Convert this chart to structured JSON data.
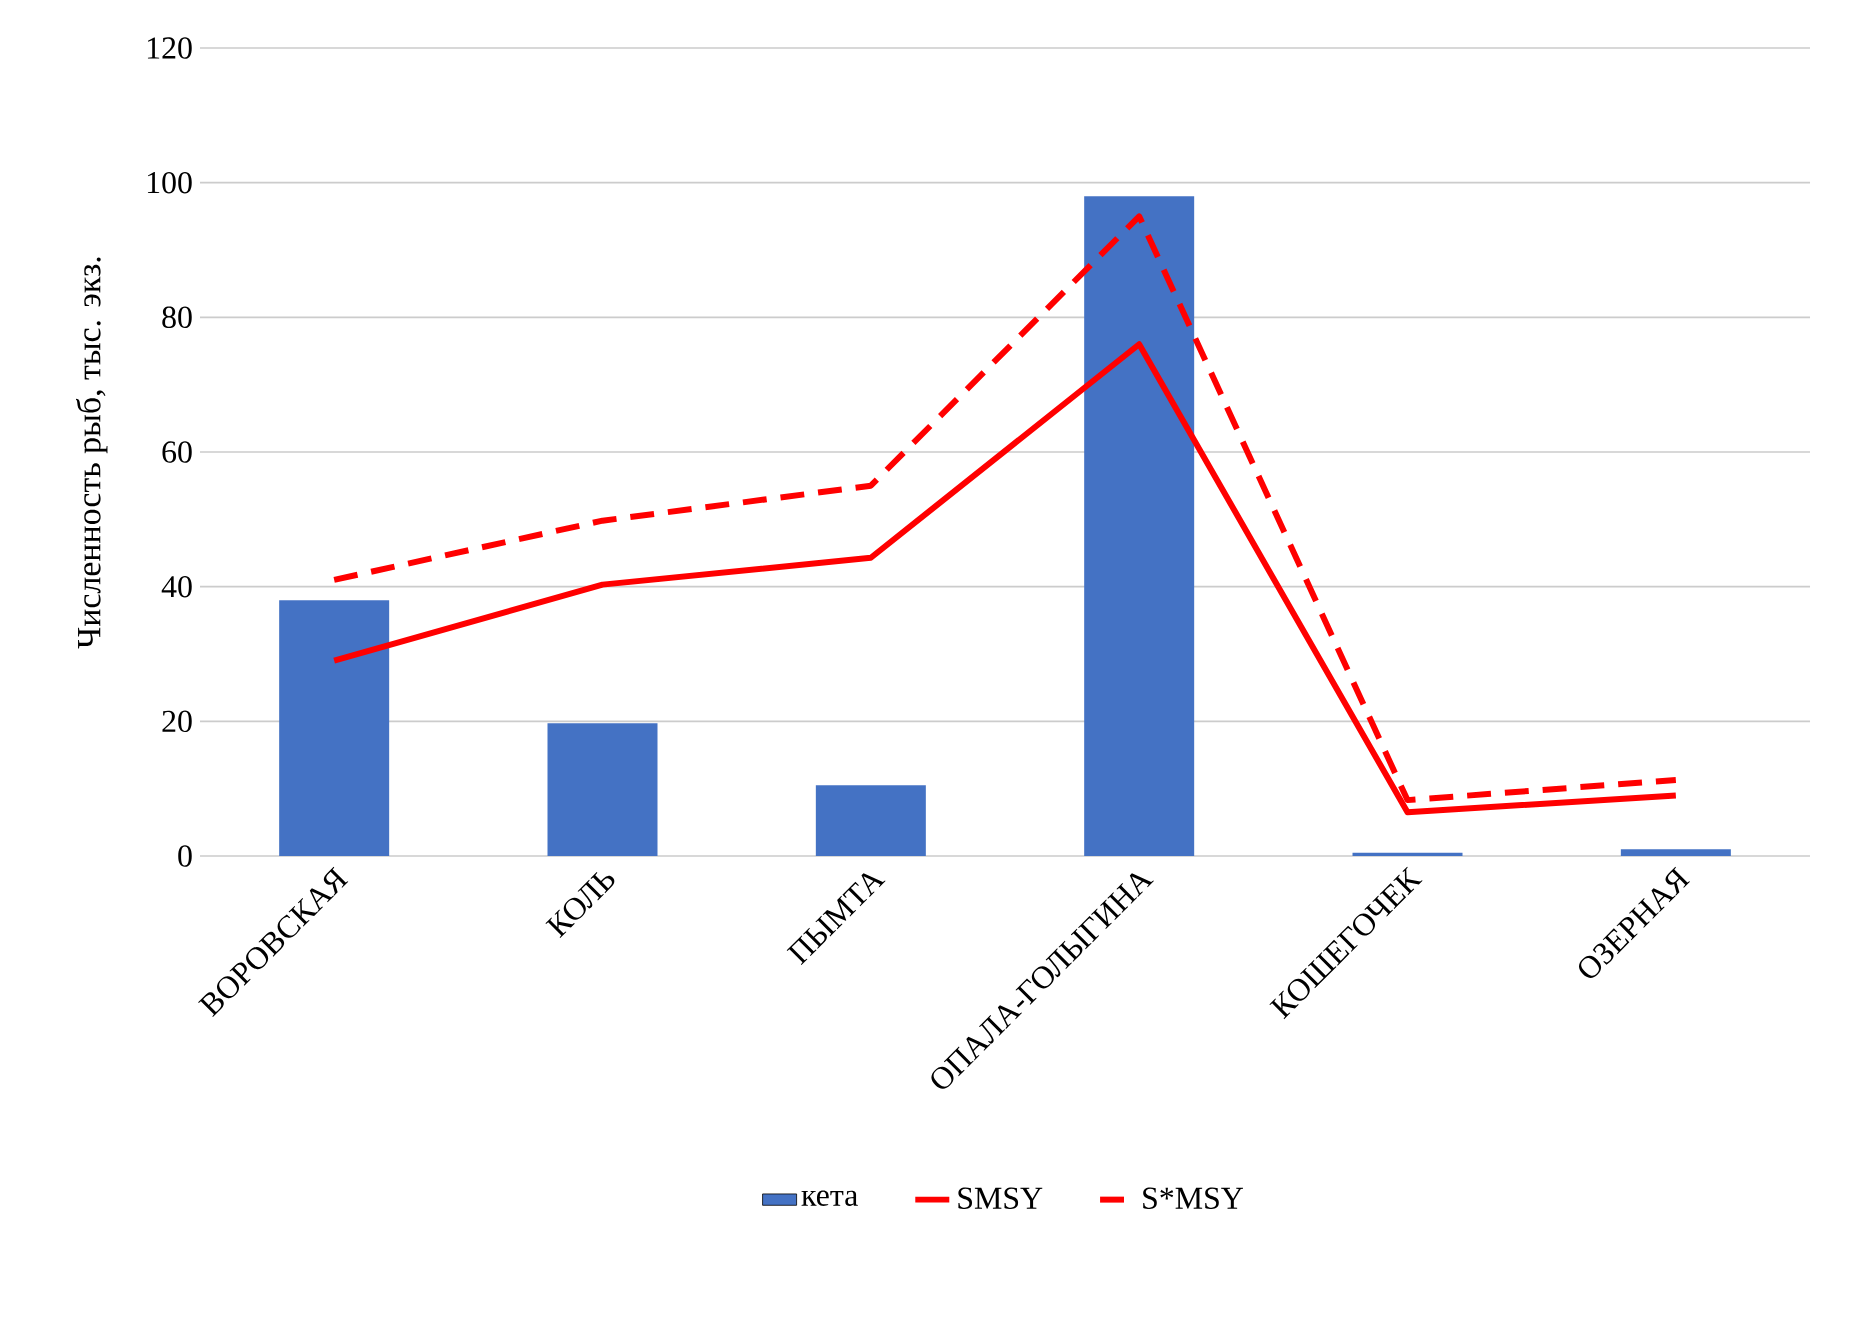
{
  "chart_data": {
    "type": "bar",
    "ylabel": "Численность рыб, тыс. экз.",
    "categories": [
      "ВОРОВСКАЯ",
      "КОЛЬ",
      "ПЫМТА",
      "ОПАЛА-ГОЛЫГИНА",
      "КОШЕГОЧЕК",
      "ОЗЕРНАЯ"
    ],
    "series": [
      {
        "name": "кета",
        "color": "#4472c4",
        "values": [
          38,
          19.7,
          10.5,
          98,
          0.5,
          1
        ]
      },
      {
        "name": "SMSY",
        "type": "line",
        "color": "#ff0000",
        "line_style": "solid",
        "values": [
          29,
          40.3,
          44.3,
          76,
          6.5,
          9
        ]
      },
      {
        "name": "S*MSY",
        "type": "line",
        "color": "#ff0000",
        "line_style": "dashed",
        "values": [
          41,
          49.8,
          55,
          95,
          8.3,
          11.3
        ]
      }
    ],
    "ylim": [
      0,
      120
    ],
    "yticks": [
      0,
      20,
      40,
      60,
      80,
      100,
      120
    ],
    "grid": "y",
    "legend": "bottom",
    "marker": "none"
  }
}
